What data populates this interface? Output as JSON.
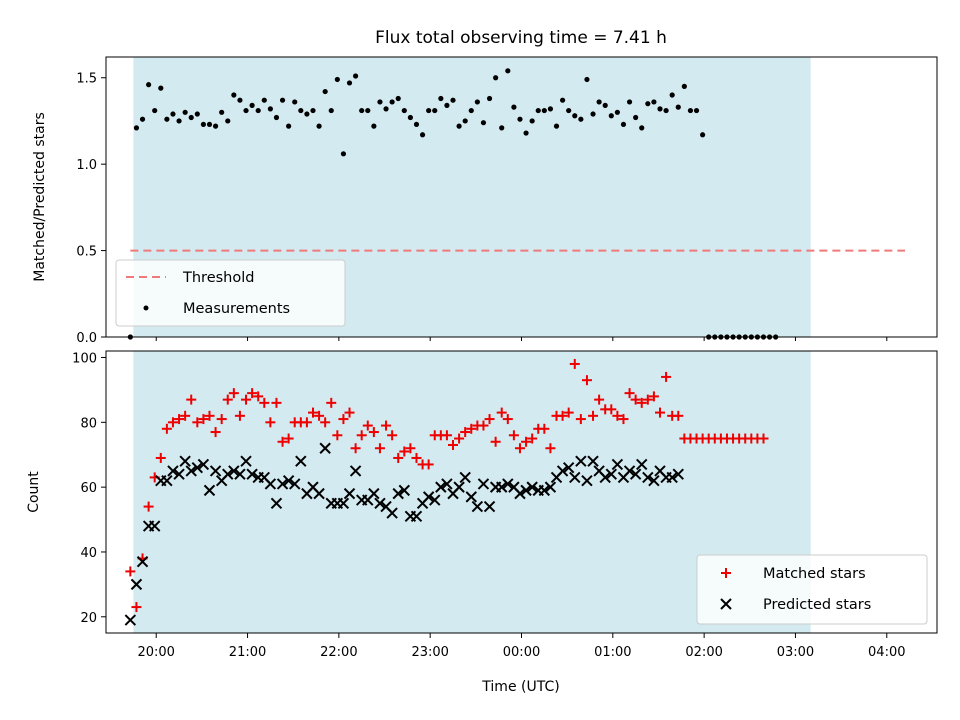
{
  "figure": {
    "title": "Flux total observing time = 7.41 h",
    "xlabel": "Time (UTC)"
  },
  "colors": {
    "shade": "#d3eaf0",
    "threshold": "#f07a7a",
    "measurements": "#000000",
    "matched": "#ee0000",
    "predicted": "#000000"
  },
  "chart_data": [
    {
      "type": "scatter",
      "ylabel": "Matched/Predicted stars",
      "ylim": [
        0,
        1.62
      ],
      "yticks": [
        "0.0",
        "0.5",
        "1.0",
        "1.5"
      ],
      "ytick_values": [
        0,
        0.5,
        1.0,
        1.5
      ],
      "xlim": [
        "19:27",
        "04:33"
      ],
      "xticks": [
        "20:00",
        "21:00",
        "22:00",
        "23:00",
        "00:00",
        "01:00",
        "02:00",
        "03:00",
        "04:00"
      ],
      "shaded_interval": [
        "19:45",
        "03:10"
      ],
      "threshold": {
        "name": "Threshold",
        "value": 0.5,
        "x_range": [
          "19:43",
          "04:12"
        ]
      },
      "legend": {
        "position": "lower-left",
        "entries": [
          "Threshold",
          "Measurements"
        ]
      },
      "measurements": {
        "name": "Measurements",
        "x_start": "19:43",
        "x_step_minutes": 4,
        "y": [
          0.0,
          1.21,
          1.26,
          1.46,
          1.31,
          1.44,
          1.26,
          1.29,
          1.25,
          1.3,
          1.27,
          1.29,
          1.23,
          1.23,
          1.22,
          1.3,
          1.25,
          1.4,
          1.37,
          1.31,
          1.34,
          1.31,
          1.37,
          1.32,
          1.27,
          1.37,
          1.22,
          1.36,
          1.31,
          1.29,
          1.31,
          1.22,
          1.42,
          1.31,
          1.49,
          1.06,
          1.47,
          1.51,
          1.31,
          1.31,
          1.22,
          1.36,
          1.32,
          1.36,
          1.38,
          1.31,
          1.27,
          1.23,
          1.17,
          1.31,
          1.31,
          1.38,
          1.34,
          1.37,
          1.22,
          1.25,
          1.31,
          1.36,
          1.24,
          1.38,
          1.5,
          1.21,
          1.54,
          1.33,
          1.26,
          1.18,
          1.25,
          1.31,
          1.31,
          1.32,
          1.22,
          1.37,
          1.31,
          1.28,
          1.26,
          1.49,
          1.29,
          1.36,
          1.34,
          1.28,
          1.3,
          1.23,
          1.36,
          1.27,
          1.21,
          1.35,
          1.36,
          1.32,
          1.31,
          1.4,
          1.33,
          1.45,
          1.31,
          1.31,
          1.17,
          0.0,
          0.0,
          0.0,
          0.0,
          0.0,
          0.0,
          0.0,
          0.0,
          0.0,
          0.0,
          0.0,
          0.0
        ]
      }
    },
    {
      "type": "scatter",
      "ylabel": "Count",
      "ylim": [
        15,
        102
      ],
      "yticks": [
        "20",
        "40",
        "60",
        "80",
        "100"
      ],
      "ytick_values": [
        20,
        40,
        60,
        80,
        100
      ],
      "xlim": [
        "19:27",
        "04:33"
      ],
      "xticks": [
        "20:00",
        "21:00",
        "22:00",
        "23:00",
        "00:00",
        "01:00",
        "02:00",
        "03:00",
        "04:00"
      ],
      "shaded_interval": [
        "19:45",
        "03:10"
      ],
      "legend": {
        "position": "lower-right",
        "entries": [
          "Matched stars",
          "Predicted stars"
        ]
      },
      "series": [
        {
          "name": "Matched stars",
          "marker": "plus",
          "x_start": "19:43",
          "x_step_minutes": 4,
          "values": [
            34,
            23,
            38,
            54,
            63,
            69,
            78,
            80,
            81,
            82,
            87,
            80,
            81,
            82,
            77,
            81,
            87,
            89,
            82,
            87,
            89,
            88,
            86,
            80,
            86,
            74,
            75,
            80,
            80,
            80,
            83,
            82,
            80,
            86,
            76,
            81,
            83,
            72,
            76,
            79,
            77,
            72,
            79,
            76,
            69,
            71,
            72,
            69,
            67,
            67,
            76,
            76,
            76,
            73,
            75,
            77,
            78,
            79,
            79,
            81,
            74,
            83,
            81,
            76,
            72,
            74,
            75,
            78,
            78,
            72,
            82,
            82,
            83,
            98,
            81,
            93,
            82,
            87,
            84,
            84,
            82,
            81,
            89,
            87,
            86,
            87,
            88,
            83,
            94,
            82,
            82,
            75,
            75,
            75,
            75,
            75,
            75,
            75,
            75,
            75,
            75,
            75,
            75,
            75,
            75
          ]
        },
        {
          "name": "Predicted stars",
          "marker": "x",
          "x_start": "19:43",
          "x_step_minutes": 4,
          "values": [
            19,
            30,
            37,
            48,
            48,
            62,
            62,
            65,
            64,
            68,
            65,
            66,
            67,
            59,
            65,
            62,
            64,
            65,
            64,
            68,
            64,
            63,
            63,
            61,
            55,
            61,
            62,
            61,
            68,
            58,
            60,
            58,
            72,
            55,
            55,
            55,
            58,
            65,
            56,
            56,
            58,
            55,
            54,
            52,
            58,
            59,
            51,
            51,
            55,
            57,
            56,
            60,
            61,
            58,
            60,
            63,
            57,
            54,
            61,
            54,
            60,
            60,
            61,
            60,
            58,
            59,
            60,
            59,
            59,
            60,
            63,
            65,
            66,
            63,
            68,
            62,
            68,
            65,
            63,
            64,
            67,
            63,
            65,
            64,
            67,
            63,
            62,
            65,
            63,
            63,
            64
          ]
        }
      ]
    }
  ]
}
